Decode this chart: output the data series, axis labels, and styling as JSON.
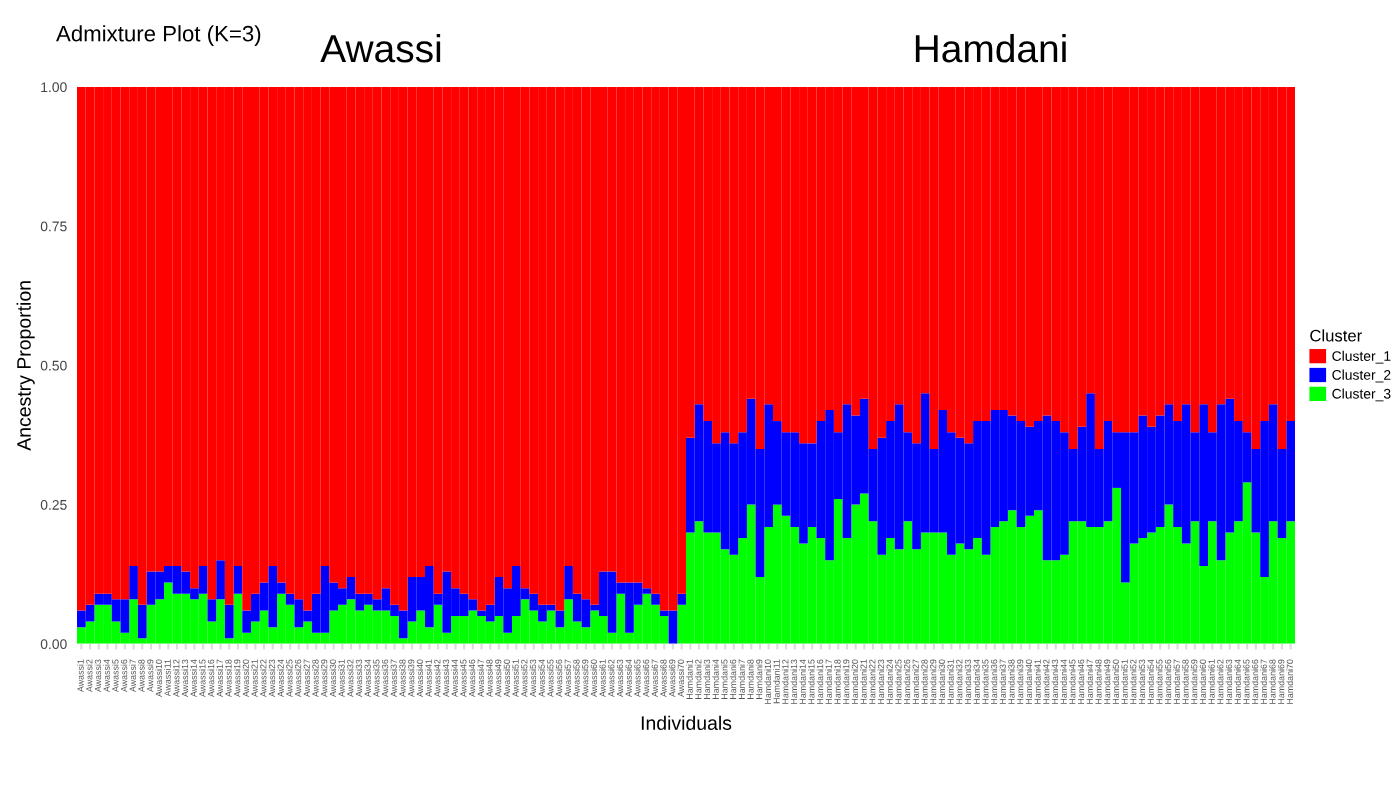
{
  "chart_data": {
    "type": "bar",
    "stacked": true,
    "title": "Admixture Plot (K=3)",
    "xlabel": "Individuals",
    "ylabel": "Ancestry Proportion",
    "legend_title": "Cluster",
    "legend": "right",
    "annotations": [
      "Awassi",
      "Hamdani"
    ],
    "ylim": [
      0,
      1
    ],
    "yticks": [
      {
        "value": 0,
        "label": "0.00"
      },
      {
        "value": 0.25,
        "label": "0.25"
      },
      {
        "value": 0.5,
        "label": "0.50"
      },
      {
        "value": 0.75,
        "label": "0.75"
      },
      {
        "value": 1,
        "label": "1.00"
      }
    ],
    "categories": [
      "Awassi1",
      "Awassi2",
      "Awassi3",
      "Awassi4",
      "Awassi5",
      "Awassi6",
      "Awassi7",
      "Awassi8",
      "Awassi9",
      "Awassi10",
      "Awassi11",
      "Awassi12",
      "Awassi13",
      "Awassi14",
      "Awassi15",
      "Awassi16",
      "Awassi17",
      "Awassi18",
      "Awassi19",
      "Awassi20",
      "Awassi21",
      "Awassi22",
      "Awassi23",
      "Awassi24",
      "Awassi25",
      "Awassi26",
      "Awassi27",
      "Awassi28",
      "Awassi29",
      "Awassi30",
      "Awassi31",
      "Awassi32",
      "Awassi33",
      "Awassi34",
      "Awassi35",
      "Awassi36",
      "Awassi37",
      "Awassi38",
      "Awassi39",
      "Awassi40",
      "Awassi41",
      "Awassi42",
      "Awassi43",
      "Awassi44",
      "Awassi45",
      "Awassi46",
      "Awassi47",
      "Awassi48",
      "Awassi49",
      "Awassi50",
      "Awassi51",
      "Awassi52",
      "Awassi53",
      "Awassi54",
      "Awassi55",
      "Awassi56",
      "Awassi57",
      "Awassi58",
      "Awassi59",
      "Awassi60",
      "Awassi61",
      "Awassi62",
      "Awassi63",
      "Awassi64",
      "Awassi65",
      "Awassi66",
      "Awassi67",
      "Awassi68",
      "Awassi69",
      "Awassi70",
      "Hamdani1",
      "Hamdani2",
      "Hamdani3",
      "Hamdani4",
      "Hamdani5",
      "Hamdani6",
      "Hamdani7",
      "Hamdani8",
      "Hamdani9",
      "Hamdani10",
      "Hamdani11",
      "Hamdani12",
      "Hamdani13",
      "Hamdani14",
      "Hamdani15",
      "Hamdani16",
      "Hamdani17",
      "Hamdani18",
      "Hamdani19",
      "Hamdani20",
      "Hamdani21",
      "Hamdani22",
      "Hamdani23",
      "Hamdani24",
      "Hamdani25",
      "Hamdani26",
      "Hamdani27",
      "Hamdani28",
      "Hamdani29",
      "Hamdani30",
      "Hamdani31",
      "Hamdani32",
      "Hamdani33",
      "Hamdani34",
      "Hamdani35",
      "Hamdani36",
      "Hamdani37",
      "Hamdani38",
      "Hamdani39",
      "Hamdani40",
      "Hamdani41",
      "Hamdani42",
      "Hamdani43",
      "Hamdani44",
      "Hamdani45",
      "Hamdani46",
      "Hamdani47",
      "Hamdani48",
      "Hamdani49",
      "Hamdani50",
      "Hamdani51",
      "Hamdani52",
      "Hamdani53",
      "Hamdani54",
      "Hamdani55",
      "Hamdani56",
      "Hamdani57",
      "Hamdani58",
      "Hamdani59",
      "Hamdani60",
      "Hamdani61",
      "Hamdani62",
      "Hamdani63",
      "Hamdani64",
      "Hamdani65",
      "Hamdani66",
      "Hamdani67",
      "Hamdani68",
      "Hamdani69",
      "Hamdani70"
    ],
    "series": [
      {
        "name": "Cluster_3",
        "color": "#00ff00",
        "values": [
          0.03,
          0.04,
          0.07,
          0.07,
          0.04,
          0.02,
          0.08,
          0.01,
          0.07,
          0.08,
          0.11,
          0.09,
          0.09,
          0.08,
          0.09,
          0.04,
          0.08,
          0.01,
          0.09,
          0.02,
          0.04,
          0.06,
          0.03,
          0.09,
          0.07,
          0.03,
          0.04,
          0.02,
          0.02,
          0.06,
          0.07,
          0.08,
          0.06,
          0.07,
          0.06,
          0.06,
          0.05,
          0.01,
          0.04,
          0.06,
          0.03,
          0.07,
          0.02,
          0.05,
          0.05,
          0.06,
          0.05,
          0.04,
          0.05,
          0.02,
          0.05,
          0.08,
          0.06,
          0.04,
          0.06,
          0.03,
          0.08,
          0.04,
          0.03,
          0.06,
          0.05,
          0.02,
          0.09,
          0.02,
          0.07,
          0.09,
          0.07,
          0.05,
          0.0,
          0.07,
          0.2,
          0.22,
          0.2,
          0.2,
          0.17,
          0.16,
          0.19,
          0.25,
          0.12,
          0.21,
          0.25,
          0.23,
          0.21,
          0.18,
          0.21,
          0.19,
          0.15,
          0.26,
          0.19,
          0.25,
          0.27,
          0.22,
          0.16,
          0.19,
          0.17,
          0.22,
          0.17,
          0.2,
          0.2,
          0.2,
          0.16,
          0.18,
          0.17,
          0.19,
          0.16,
          0.21,
          0.22,
          0.24,
          0.21,
          0.23,
          0.24,
          0.15,
          0.15,
          0.16,
          0.22,
          0.22,
          0.21,
          0.21,
          0.22,
          0.28,
          0.11,
          0.18,
          0.19,
          0.2,
          0.21,
          0.25,
          0.21,
          0.18,
          0.22,
          0.14,
          0.22,
          0.15,
          0.2,
          0.22,
          0.29,
          0.2,
          0.12,
          0.22,
          0.19,
          0.22
        ]
      },
      {
        "name": "Cluster_2",
        "color": "#0000ff",
        "values": [
          0.03,
          0.03,
          0.02,
          0.02,
          0.04,
          0.06,
          0.06,
          0.06,
          0.06,
          0.05,
          0.03,
          0.05,
          0.04,
          0.02,
          0.05,
          0.04,
          0.07,
          0.06,
          0.05,
          0.04,
          0.05,
          0.05,
          0.11,
          0.02,
          0.02,
          0.05,
          0.02,
          0.07,
          0.12,
          0.05,
          0.03,
          0.04,
          0.03,
          0.02,
          0.02,
          0.04,
          0.02,
          0.05,
          0.08,
          0.06,
          0.11,
          0.02,
          0.11,
          0.05,
          0.04,
          0.02,
          0.01,
          0.03,
          0.07,
          0.08,
          0.09,
          0.02,
          0.03,
          0.03,
          0.01,
          0.03,
          0.06,
          0.05,
          0.05,
          0.01,
          0.08,
          0.11,
          0.02,
          0.09,
          0.04,
          0.01,
          0.02,
          0.01,
          0.06,
          0.02,
          0.17,
          0.21,
          0.2,
          0.16,
          0.21,
          0.2,
          0.19,
          0.19,
          0.23,
          0.22,
          0.15,
          0.15,
          0.17,
          0.18,
          0.15,
          0.21,
          0.27,
          0.12,
          0.24,
          0.16,
          0.17,
          0.13,
          0.21,
          0.21,
          0.26,
          0.16,
          0.19,
          0.25,
          0.15,
          0.22,
          0.22,
          0.19,
          0.19,
          0.21,
          0.24,
          0.21,
          0.2,
          0.17,
          0.19,
          0.16,
          0.16,
          0.26,
          0.25,
          0.22,
          0.13,
          0.17,
          0.24,
          0.14,
          0.18,
          0.1,
          0.27,
          0.2,
          0.22,
          0.19,
          0.2,
          0.18,
          0.19,
          0.25,
          0.16,
          0.29,
          0.16,
          0.28,
          0.24,
          0.18,
          0.09,
          0.15,
          0.28,
          0.21,
          0.16,
          0.18
        ]
      },
      {
        "name": "Cluster_1",
        "color": "#ff0000",
        "values": [
          0.94,
          0.93,
          0.91,
          0.91,
          0.92,
          0.92,
          0.86,
          0.93,
          0.87,
          0.87,
          0.86,
          0.86,
          0.87,
          0.9,
          0.86,
          0.92,
          0.85,
          0.93,
          0.86,
          0.94,
          0.91,
          0.89,
          0.86,
          0.89,
          0.91,
          0.92,
          0.94,
          0.91,
          0.86,
          0.89,
          0.9,
          0.88,
          0.91,
          0.91,
          0.92,
          0.9,
          0.93,
          0.94,
          0.88,
          0.88,
          0.86,
          0.91,
          0.87,
          0.9,
          0.91,
          0.92,
          0.94,
          0.93,
          0.88,
          0.9,
          0.86,
          0.9,
          0.91,
          0.93,
          0.93,
          0.94,
          0.86,
          0.91,
          0.92,
          0.93,
          0.87,
          0.87,
          0.89,
          0.89,
          0.89,
          0.9,
          0.91,
          0.94,
          0.94,
          0.91,
          0.63,
          0.57,
          0.6,
          0.64,
          0.62,
          0.64,
          0.62,
          0.56,
          0.65,
          0.57,
          0.6,
          0.62,
          0.62,
          0.64,
          0.64,
          0.6,
          0.58,
          0.62,
          0.57,
          0.59,
          0.56,
          0.65,
          0.63,
          0.6,
          0.57,
          0.62,
          0.64,
          0.55,
          0.65,
          0.58,
          0.62,
          0.63,
          0.64,
          0.6,
          0.6,
          0.58,
          0.58,
          0.59,
          0.6,
          0.61,
          0.6,
          0.59,
          0.6,
          0.62,
          0.65,
          0.61,
          0.55,
          0.65,
          0.6,
          0.62,
          0.62,
          0.62,
          0.59,
          0.61,
          0.59,
          0.57,
          0.6,
          0.57,
          0.62,
          0.57,
          0.62,
          0.57,
          0.56,
          0.6,
          0.62,
          0.65,
          0.6,
          0.57,
          0.65,
          0.6
        ]
      }
    ]
  }
}
